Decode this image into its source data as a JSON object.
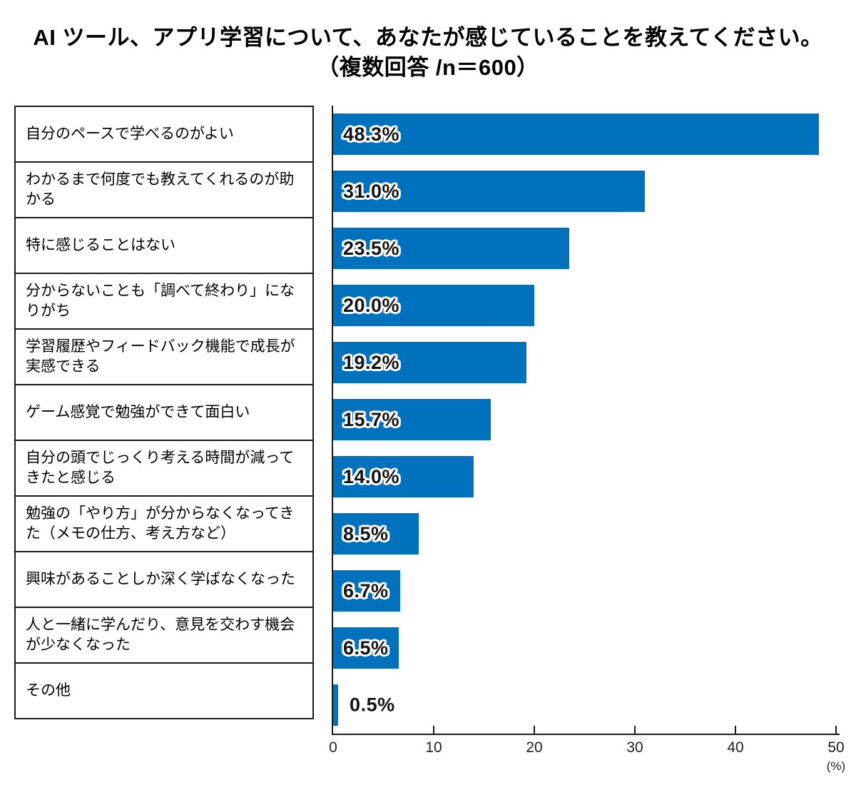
{
  "title": {
    "line1": "AI ツール、アプリ学習について、あなたが感じていることを教えてください。",
    "line2": "（複数回答 /n＝600）"
  },
  "chart_data": {
    "type": "bar",
    "orientation": "horizontal",
    "title": "AI ツール、アプリ学習について、あなたが感じていることを教えてください。（複数回答 /n＝600）",
    "categories": [
      "自分のペースで学べるのがよい",
      "わかるまで何度でも教えてくれるのが助かる",
      "特に感じることはない",
      "分からないことも「調べて終わり」になりがち",
      "学習履歴やフィードバック機能で成長が実感できる",
      "ゲーム感覚で勉強ができて面白い",
      "自分の頭でじっくり考える時間が減ってきたと感じる",
      "勉強の「やり方」が分からなくなってきた（メモの仕方、考え方など）",
      "興味があることしか深く学ばなくなった",
      "人と一緒に学んだり、意見を交わす機会が少なくなった",
      "その他"
    ],
    "values": [
      48.3,
      31.0,
      23.5,
      20.0,
      19.2,
      15.7,
      14.0,
      8.5,
      6.7,
      6.5,
      0.5
    ],
    "value_labels": [
      "48.3%",
      "31.0%",
      "23.5%",
      "20.0%",
      "19.2%",
      "15.7%",
      "14.0%",
      "8.5%",
      "6.7%",
      "6.5%",
      "0.5%"
    ],
    "xlabel": "(%)",
    "xlim": [
      0,
      50
    ],
    "xticks": [
      0,
      10,
      20,
      30,
      40,
      50
    ],
    "bar_color": "#0071BC",
    "grid": false,
    "legend": "none"
  }
}
